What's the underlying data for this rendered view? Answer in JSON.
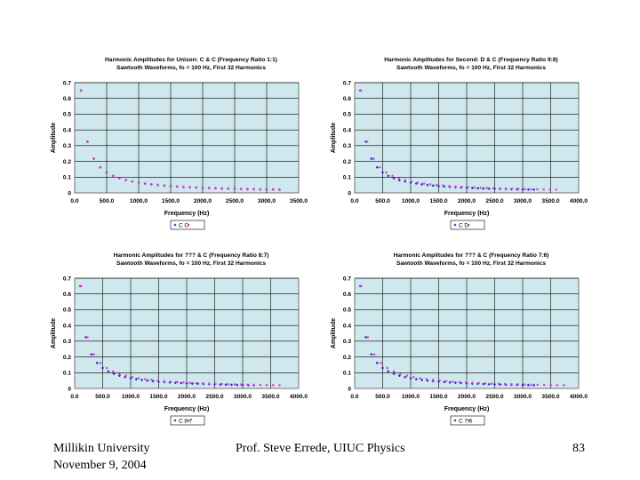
{
  "footer": {
    "left_line1": "Millikin University",
    "left_line2": "November 9, 2004",
    "center": "Prof. Steve Errede, UIUC Physics",
    "page": "83"
  },
  "colors": {
    "plot_bg": "#cfe8ee",
    "grid": "#000000",
    "series_c": "#2a2ad0",
    "series_other": "#e23cc8"
  },
  "chart_data": [
    {
      "type": "scatter",
      "title": "Harmonic Amplitudes for Unison: C & C (Frequency Ratio 1:1)",
      "subtitle": "Sawtooth Waveforms, fo = 100 Hz, First 32 Harmonics",
      "xlabel": "Frequency (Hz)",
      "ylabel": "Amplitude",
      "xlim": [
        0,
        3500
      ],
      "ylim": [
        0,
        0.7
      ],
      "xticks": [
        "0.0",
        "500.0",
        "1000.0",
        "1500.0",
        "2000.0",
        "2500.0",
        "3000.0",
        "3500.0"
      ],
      "yticks": [
        "0",
        "0.1",
        "0.2",
        "0.3",
        "0.4",
        "0.5",
        "0.6",
        "0.7"
      ],
      "legend": "C C",
      "series": [
        {
          "name": "C",
          "f0": 100,
          "amp": 0.65,
          "harmonics": 32,
          "color": "series_c"
        },
        {
          "name": "C",
          "f0": 100,
          "amp": 0.65,
          "harmonics": 32,
          "color": "series_other"
        }
      ]
    },
    {
      "type": "scatter",
      "title": "Harmonic Amplitudes for Second: D & C (Frequency Ratio 9:8)",
      "subtitle": "Sawtooth Waveforms, fo = 100 Hz, First 32 Harmonics",
      "xlabel": "Frequency (Hz)",
      "ylabel": "Amplitude",
      "xlim": [
        0,
        4000
      ],
      "ylim": [
        0,
        0.7
      ],
      "xticks": [
        "0.0",
        "500.0",
        "1000.0",
        "1500.0",
        "2000.0",
        "2500.0",
        "3000.0",
        "3500.0",
        "4000.0"
      ],
      "yticks": [
        "0",
        "0.1",
        "0.2",
        "0.3",
        "0.4",
        "0.5",
        "0.6",
        "0.7"
      ],
      "legend": "C D",
      "series": [
        {
          "name": "C",
          "f0": 100,
          "amp": 0.65,
          "harmonics": 32,
          "color": "series_c"
        },
        {
          "name": "D",
          "f0": 112.5,
          "amp": 0.65,
          "harmonics": 32,
          "color": "series_other"
        }
      ]
    },
    {
      "type": "scatter",
      "title": "Harmonic Amplitudes for ??? & C (Frequency Ratio 8:7)",
      "subtitle": "Sawtooth Waveforms, fo = 100 Hz, First 32 Harmonics",
      "xlabel": "Frequency (Hz)",
      "ylabel": "Amplitude",
      "xlim": [
        0,
        4000
      ],
      "ylim": [
        0,
        0.7
      ],
      "xticks": [
        "0.0",
        "500.0",
        "1000.0",
        "1500.0",
        "2000.0",
        "2500.0",
        "3000.0",
        "3500.0",
        "4000.0"
      ],
      "yticks": [
        "0",
        "0.1",
        "0.2",
        "0.3",
        "0.4",
        "0.5",
        "0.6",
        "0.7"
      ],
      "legend": "C 8:7",
      "series": [
        {
          "name": "C",
          "f0": 100,
          "amp": 0.65,
          "harmonics": 32,
          "color": "series_c"
        },
        {
          "name": "8:7",
          "f0": 114.3,
          "amp": 0.65,
          "harmonics": 32,
          "color": "series_other"
        }
      ]
    },
    {
      "type": "scatter",
      "title": "Harmonic Amplitudes for ??? & C (Frequency Ratio 7:6)",
      "subtitle": "Sawtooth Waveforms, fo = 100 Hz, First 32 Harmonics",
      "xlabel": "Frequency (Hz)",
      "ylabel": "Amplitude",
      "xlim": [
        0,
        4000
      ],
      "ylim": [
        0,
        0.7
      ],
      "xticks": [
        "0.0",
        "500.0",
        "1000.0",
        "1500.0",
        "2000.0",
        "2500.0",
        "3000.0",
        "3500.0",
        "4000.0"
      ],
      "yticks": [
        "0",
        "0.1",
        "0.2",
        "0.3",
        "0.4",
        "0.5",
        "0.6",
        "0.7"
      ],
      "legend": "C 7:6",
      "series": [
        {
          "name": "C",
          "f0": 100,
          "amp": 0.65,
          "harmonics": 32,
          "color": "series_c"
        },
        {
          "name": "7:6",
          "f0": 116.7,
          "amp": 0.65,
          "harmonics": 32,
          "color": "series_other"
        }
      ]
    }
  ]
}
